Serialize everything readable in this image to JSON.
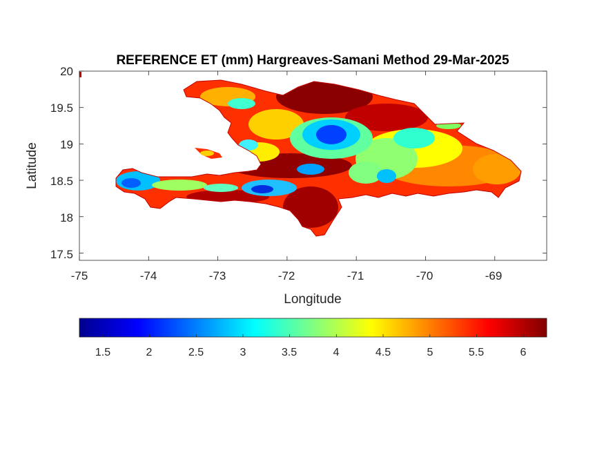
{
  "title": "REFERENCE ET (mm) Hargreaves-Samani Method  29-Mar-2025",
  "xlabel": "Longitude",
  "ylabel": "Latitude",
  "x_ticks": [
    "-75",
    "-74",
    "-73",
    "-72",
    "-71",
    "-70",
    "-69"
  ],
  "y_ticks": [
    "20",
    "19.5",
    "19",
    "18.5",
    "18",
    "17.5"
  ],
  "colorbar": {
    "ticks": [
      "1.5",
      "2",
      "2.5",
      "3",
      "3.5",
      "4",
      "4.5",
      "5",
      "5.5",
      "6"
    ],
    "range": [
      1.25,
      6.25
    ],
    "colormap": "jet"
  },
  "map": {
    "xlim": [
      -75,
      -68.25
    ],
    "ylim": [
      17.4,
      20
    ],
    "region": "Hispaniola",
    "colors": {
      "low": "#00008f",
      "blue": "#0050ff",
      "cyan": "#00e0ff",
      "green": "#80ff80",
      "yellow": "#ffff00",
      "orange": "#ff8000",
      "red": "#ff1000",
      "high": "#800000"
    }
  }
}
